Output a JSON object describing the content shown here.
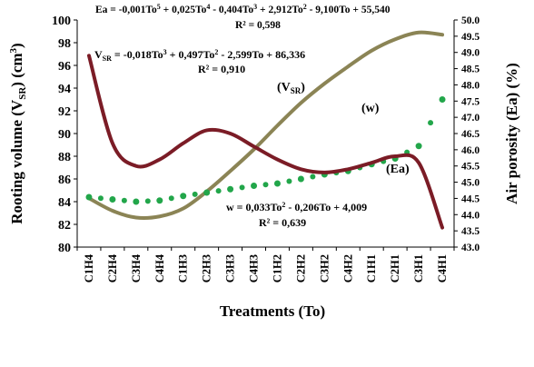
{
  "chart_data": {
    "type": "line",
    "categories": [
      "C1H4",
      "C2H4",
      "C3H4",
      "C4H4",
      "C1H3",
      "C2H3",
      "C3H3",
      "C4H3",
      "C1H2",
      "C2H2",
      "C3H2",
      "C4H2",
      "C1H1",
      "C2H1",
      "C3H1",
      "C4H1"
    ],
    "xlabel": "Treatments (To)",
    "ylabel_left": "Rooting volume (V",
    "ylabel_left_sub": "SR",
    "ylabel_left_end": ") (cm",
    "ylabel_left_sup": "3",
    "ylabel_left_close": ")",
    "ylabel_right": "Air porosity (Ea) (%)",
    "ylim_left": [
      80,
      100
    ],
    "yticks_left": [
      "80",
      "82",
      "84",
      "86",
      "88",
      "90",
      "92",
      "94",
      "96",
      "98",
      "100"
    ],
    "ylim_right": [
      43.0,
      50.0
    ],
    "yticks_right": [
      "43.0",
      "43.5",
      "44.0",
      "44.5",
      "45.0",
      "45.5",
      "46.0",
      "46.5",
      "47.0",
      "47.5",
      "48.0",
      "48.5",
      "49.0",
      "49.5",
      "50.0"
    ],
    "series": [
      {
        "name": "(V",
        "name_sub": "SR",
        "name_end": ")",
        "axis": "left",
        "color": "#8b8455",
        "values": [
          84.3,
          83.2,
          82.6,
          82.7,
          83.4,
          84.9,
          86.7,
          88.6,
          90.7,
          92.7,
          94.4,
          95.9,
          97.3,
          98.3,
          98.9,
          98.7
        ],
        "equation_parts": [
          "V",
          "SR",
          " = -0,018To",
          "3",
          " + 0,497To",
          "2",
          " - 2,599To + 86,336"
        ],
        "r2": "R² = 0,910"
      },
      {
        "name": "(w)",
        "axis": "left",
        "color": "#22a64a",
        "values": [
          84.4,
          84.2,
          84.0,
          84.1,
          84.5,
          84.8,
          85.1,
          85.4,
          85.6,
          86.0,
          86.4,
          86.7,
          87.3,
          87.8,
          88.9,
          93.0
        ],
        "equation_parts": [
          "w = 0,033To",
          "2",
          " - 0,206To + 4,009"
        ],
        "r2": "R² = 0,639"
      },
      {
        "name": "(Ea)",
        "axis": "right",
        "color": "#7b1c26",
        "values": [
          48.9,
          46.2,
          45.5,
          45.7,
          46.2,
          46.6,
          46.5,
          46.1,
          45.7,
          45.4,
          45.3,
          45.4,
          45.6,
          45.8,
          45.6,
          43.6
        ],
        "equation_parts": [
          "Ea = -0,001To",
          "5",
          " + 0,025To",
          "4",
          " - 0,404To",
          "3",
          " + 2,912To",
          "2",
          " - 9,100To + 55,540"
        ],
        "r2": "R² = 0,598"
      }
    ],
    "grid": false,
    "legend": "inline labels"
  }
}
